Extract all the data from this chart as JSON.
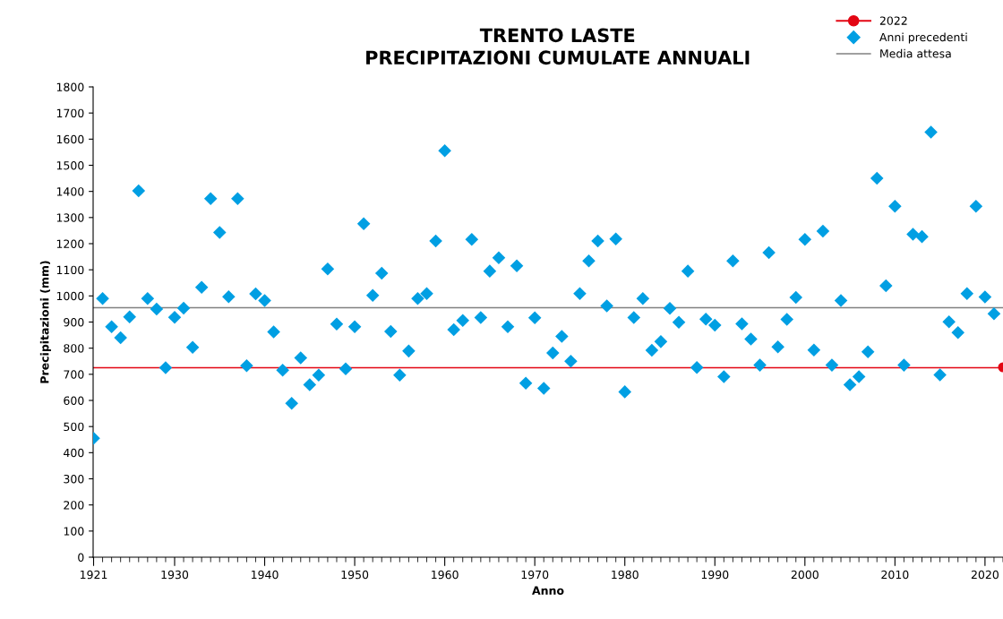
{
  "chart_data": {
    "type": "scatter",
    "title": "TRENTO LASTE\nPRECIPITAZIONI CUMULATE ANNUALI",
    "xlabel": "Anno",
    "ylabel": "Precipitazioni (mm)",
    "series": [
      {
        "name": "2022",
        "type": "line",
        "color": "#e30613",
        "marker": "circle",
        "line_style": "solid",
        "x": [
          2022
        ],
        "values": [
          727
        ]
      },
      {
        "name": "Anni precedenti",
        "color": "#009fe3",
        "marker": "diamond",
        "x": [
          1921,
          1922,
          1923,
          1924,
          1925,
          1926,
          1927,
          1928,
          1929,
          1930,
          1931,
          1932,
          1933,
          1934,
          1935,
          1936,
          1937,
          1938,
          1939,
          1940,
          1941,
          1942,
          1943,
          1944,
          1945,
          1946,
          1947,
          1948,
          1949,
          1950,
          1951,
          1952,
          1953,
          1954,
          1955,
          1956,
          1957,
          1958,
          1959,
          1960,
          1961,
          1962,
          1963,
          1964,
          1965,
          1966,
          1967,
          1968,
          1969,
          1970,
          1971,
          1972,
          1973,
          1974,
          1975,
          1976,
          1977,
          1978,
          1979,
          1980,
          1981,
          1982,
          1983,
          1984,
          1985,
          1986,
          1987,
          1988,
          1989,
          1990,
          1991,
          1992,
          1993,
          1994,
          1995,
          1996,
          1997,
          1998,
          1999,
          2000,
          2001,
          2002,
          2003,
          2004,
          2005,
          2006,
          2007,
          2008,
          2009,
          2010,
          2011,
          2012,
          2013,
          2014,
          2015,
          2016,
          2017,
          2018,
          2019,
          2020,
          2021
        ],
        "values": [
          455,
          990,
          882,
          840,
          920,
          1402,
          990,
          950,
          725,
          918,
          953,
          803,
          1033,
          1372,
          1243,
          997,
          1372,
          733,
          1008,
          982,
          862,
          716,
          589,
          763,
          660,
          697,
          1103,
          892,
          721,
          882,
          1276,
          1002,
          1087,
          864,
          697,
          789,
          990,
          1009,
          1210,
          1556,
          871,
          906,
          1216,
          917,
          1095,
          1146,
          882,
          1115,
          666,
          916,
          646,
          782,
          845,
          750,
          1009,
          1134,
          1210,
          962,
          1218,
          633,
          917,
          990,
          792,
          825,
          952,
          899,
          1095,
          726,
          911,
          888,
          691,
          1134,
          893,
          835,
          735,
          1166,
          805,
          910,
          994,
          1216,
          793,
          1248,
          735,
          982,
          660,
          691,
          786,
          1450,
          1039,
          1343,
          735,
          1236,
          1227,
          1627,
          698,
          901,
          860,
          1009,
          1343,
          996,
          932
        ]
      }
    ],
    "ref_lines": [
      {
        "axis": "y",
        "value": 725,
        "color": "#e30613"
      },
      {
        "axis": "y",
        "value": 955,
        "label": "Media attesa",
        "color": "#808080"
      }
    ],
    "xlim": [
      1920.95,
      2022
    ],
    "xticks": [
      1921,
      1930,
      1940,
      1950,
      1960,
      1970,
      1980,
      1990,
      2000,
      2010,
      2020
    ],
    "ylim": [
      0,
      1800
    ],
    "yticks": [
      0,
      100,
      200,
      300,
      400,
      500,
      600,
      700,
      800,
      900,
      1000,
      1100,
      1200,
      1300,
      1400,
      1500,
      1600,
      1700,
      1800
    ],
    "grid": false,
    "legend": "top right"
  }
}
